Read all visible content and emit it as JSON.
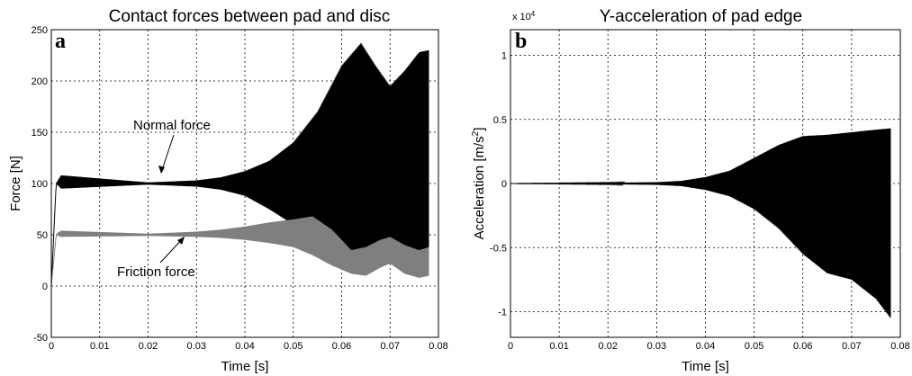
{
  "chart_data": [
    {
      "type": "line",
      "panel_label": "a",
      "title": "Contact forces between pad and disc",
      "xlabel": "Time [s]",
      "ylabel": "Force [N]",
      "xlim": [
        0,
        0.08
      ],
      "ylim": [
        -50,
        250
      ],
      "x_ticks": [
        "0",
        "0.01",
        "0.02",
        "0.03",
        "0.04",
        "0.05",
        "0.06",
        "0.07",
        "0.08"
      ],
      "y_ticks": [
        "-50",
        "0",
        "50",
        "100",
        "150",
        "200",
        "250"
      ],
      "grid": true,
      "annotations": [
        "Normal force",
        "Friction force"
      ],
      "series": [
        {
          "name": "Normal force",
          "color": "#000000",
          "x": [
            0,
            0.001,
            0.002,
            0.02,
            0.03,
            0.035,
            0.04,
            0.045,
            0.05,
            0.055,
            0.06,
            0.064,
            0.067,
            0.07,
            0.073,
            0.076,
            0.078
          ],
          "upper": [
            0,
            100,
            108,
            101,
            103,
            106,
            112,
            122,
            140,
            170,
            215,
            237,
            215,
            195,
            210,
            228,
            230
          ],
          "lower": [
            0,
            100,
            95,
            99,
            97,
            94,
            88,
            75,
            60,
            40,
            20,
            25,
            40,
            45,
            35,
            25,
            20
          ]
        },
        {
          "name": "Friction force",
          "color": "#7f7f7f",
          "x": [
            0,
            0.001,
            0.002,
            0.02,
            0.03,
            0.035,
            0.04,
            0.045,
            0.05,
            0.054,
            0.058,
            0.062,
            0.065,
            0.068,
            0.07,
            0.073,
            0.076,
            0.078
          ],
          "upper": [
            0,
            50,
            54,
            51,
            53,
            55,
            58,
            62,
            65,
            68,
            55,
            35,
            38,
            45,
            48,
            40,
            35,
            38
          ],
          "lower": [
            0,
            50,
            48,
            49,
            48,
            47,
            45,
            42,
            38,
            30,
            20,
            12,
            10,
            18,
            22,
            12,
            8,
            10
          ]
        }
      ]
    },
    {
      "type": "line",
      "panel_label": "b",
      "title": "Y-acceleration of pad edge",
      "xlabel": "Time [s]",
      "ylabel": "Acceleration [m/s²]",
      "y_exponent_label": "x 10",
      "y_exponent": "4",
      "xlim": [
        0,
        0.08
      ],
      "ylim": [
        -1.2,
        1.2
      ],
      "x_ticks": [
        "0",
        "0.01",
        "0.02",
        "0.03",
        "0.04",
        "0.05",
        "0.06",
        "0.07",
        "0.08"
      ],
      "y_ticks": [
        "-1",
        "-0.5",
        "0",
        "0.5",
        "1"
      ],
      "grid": true,
      "series": [
        {
          "color": "#000000",
          "x": [
            0,
            0.02,
            0.03,
            0.035,
            0.04,
            0.045,
            0.05,
            0.055,
            0.06,
            0.065,
            0.07,
            0.075,
            0.078
          ],
          "upper": [
            0,
            0.005,
            0.01,
            0.02,
            0.05,
            0.1,
            0.2,
            0.3,
            0.37,
            0.38,
            0.4,
            0.42,
            0.43
          ],
          "lower": [
            0,
            -0.005,
            -0.01,
            -0.02,
            -0.05,
            -0.1,
            -0.2,
            -0.35,
            -0.55,
            -0.7,
            -0.75,
            -0.9,
            -1.05
          ]
        }
      ]
    }
  ]
}
